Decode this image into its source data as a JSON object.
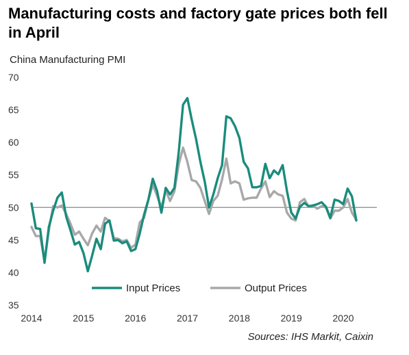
{
  "title": "Manufacturing costs and factory gate prices both fell in April",
  "source": "Sources: IHS Markit, Caixin",
  "colors": {
    "input": "#1a8c7c",
    "output": "#a8a8a8",
    "reference": "#888888"
  },
  "chart_data": {
    "type": "line",
    "title": "Manufacturing costs and factory gate prices both fell in April",
    "subtitle": "China Manufacturing PMI",
    "xlabel": "",
    "ylabel": "",
    "ylim": [
      35,
      70
    ],
    "yticks": [
      35,
      40,
      45,
      50,
      55,
      60,
      65,
      70
    ],
    "xticks": [
      "2014",
      "2015",
      "2016",
      "2017",
      "2018",
      "2019",
      "2020"
    ],
    "reference_line": 50,
    "grid": false,
    "legend_position": "lower-center",
    "x": [
      "2014-01",
      "2014-02",
      "2014-03",
      "2014-04",
      "2014-05",
      "2014-06",
      "2014-07",
      "2014-08",
      "2014-09",
      "2014-10",
      "2014-11",
      "2014-12",
      "2015-01",
      "2015-02",
      "2015-03",
      "2015-04",
      "2015-05",
      "2015-06",
      "2015-07",
      "2015-08",
      "2015-09",
      "2015-10",
      "2015-11",
      "2015-12",
      "2016-01",
      "2016-02",
      "2016-03",
      "2016-04",
      "2016-05",
      "2016-06",
      "2016-07",
      "2016-08",
      "2016-09",
      "2016-10",
      "2016-11",
      "2016-12",
      "2017-01",
      "2017-02",
      "2017-03",
      "2017-04",
      "2017-05",
      "2017-06",
      "2017-07",
      "2017-08",
      "2017-09",
      "2017-10",
      "2017-11",
      "2017-12",
      "2018-01",
      "2018-02",
      "2018-03",
      "2018-04",
      "2018-05",
      "2018-06",
      "2018-07",
      "2018-08",
      "2018-09",
      "2018-10",
      "2018-11",
      "2018-12",
      "2019-01",
      "2019-02",
      "2019-03",
      "2019-04",
      "2019-05",
      "2019-06",
      "2019-07",
      "2019-08",
      "2019-09",
      "2019-10",
      "2019-11",
      "2019-12",
      "2020-01",
      "2020-02",
      "2020-03",
      "2020-04"
    ],
    "series": [
      {
        "name": "Input Prices",
        "values": [
          50.6,
          46.8,
          46.7,
          41.5,
          47.0,
          49.5,
          51.5,
          52.3,
          48.6,
          46.5,
          44.3,
          44.7,
          43.0,
          40.2,
          42.6,
          45.2,
          43.6,
          47.5,
          48.0,
          44.9,
          45.0,
          44.5,
          44.8,
          43.3,
          43.6,
          46.0,
          48.9,
          51.2,
          54.4,
          52.5,
          49.2,
          53.0,
          52.0,
          53.0,
          58.5,
          65.8,
          66.8,
          63.5,
          60.5,
          57.0,
          54.0,
          50.0,
          52.0,
          54.5,
          56.5,
          64.0,
          63.7,
          62.5,
          60.7,
          57.0,
          56.0,
          53.1,
          53.1,
          53.3,
          56.7,
          54.5,
          55.7,
          55.1,
          56.5,
          52.5,
          49.2,
          48.3,
          50.1,
          50.7,
          50.2,
          50.3,
          50.5,
          50.8,
          50.1,
          48.4,
          51.2,
          51.0,
          50.5,
          52.9,
          51.7,
          48.0
        ]
      },
      {
        "name": "Output Prices",
        "values": [
          47.0,
          45.6,
          45.6,
          41.8,
          46.5,
          50.2,
          50.0,
          50.3,
          49.0,
          47.5,
          45.8,
          46.3,
          45.2,
          44.2,
          46.0,
          47.2,
          46.3,
          48.4,
          47.9,
          45.3,
          45.2,
          44.8,
          45.0,
          43.8,
          44.3,
          47.7,
          48.4,
          51.2,
          53.5,
          51.8,
          50.0,
          52.6,
          51.0,
          52.5,
          56.6,
          59.2,
          57.0,
          54.2,
          54.0,
          53.0,
          51.0,
          49.0,
          51.0,
          51.8,
          54.3,
          57.5,
          53.7,
          54.0,
          53.7,
          51.2,
          51.4,
          51.5,
          51.5,
          52.9,
          54.0,
          51.6,
          52.5,
          52.0,
          51.8,
          49.2,
          48.3,
          48.0,
          50.8,
          51.3,
          50.1,
          50.3,
          49.8,
          50.2,
          50.0,
          48.3,
          49.5,
          49.5,
          50.0,
          51.3,
          49.2,
          48.1
        ]
      }
    ]
  }
}
